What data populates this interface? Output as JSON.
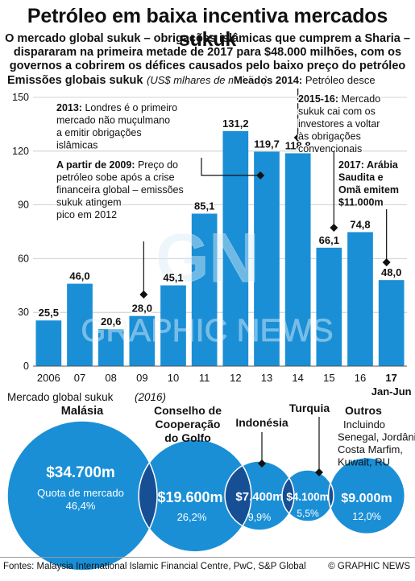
{
  "header": {
    "title": "Petróleo em baixa incentiva mercados sukuk",
    "subtitle_lines": [
      "O mercado global sukuk – obrigações islâmicas que cumprem a Sharia –",
      "dispararam na primeira metade de 2017 para $48.000 milhões, com os",
      "governos a cobrirem os défices causados pelo baixo preço do petróleo"
    ]
  },
  "chart_data": [
    {
      "type": "bar",
      "title": "Emissões globais sukuk",
      "unit_label": "(US$ mlhares de milhões)",
      "categories": [
        "2006",
        "07",
        "08",
        "09",
        "10",
        "11",
        "12",
        "13",
        "14",
        "15",
        "16",
        "17"
      ],
      "category_sublabel": "Jan-Jun",
      "values": [
        25.5,
        46.0,
        20.6,
        28.0,
        45.1,
        85.1,
        131.2,
        119.7,
        118.8,
        66.1,
        74.8,
        48.0
      ],
      "value_labels": [
        "25,5",
        "46,0",
        "20,6",
        "28,0",
        "45,1",
        "85,1",
        "131,2",
        "119,7",
        "118,8",
        "66,1",
        "74,8",
        "48,0"
      ],
      "yticks": [
        "0",
        "30",
        "60",
        "90",
        "120",
        "150"
      ],
      "ylim": [
        0,
        150
      ],
      "grid": true,
      "bar_color": "#1a8fd6",
      "annotations": [
        {
          "title": "2013:",
          "text": "Londres é o primeiro mercado não muçulmano a emitir obrigações islâmicas",
          "lines": [
            "Londres é o primeiro",
            "mercado não muçulmano",
            "a emitir obrigações",
            "islâmicas"
          ]
        },
        {
          "title": "A partir de 2009:",
          "text": "Preço do petróleo sobe após a crise financeira global – emissões sukuk atingem pico em 2012",
          "lines": [
            "Preço do",
            "petróleo sobe após a crise",
            "financeira global – emissões",
            "sukuk atingem",
            "pico em 2012"
          ]
        },
        {
          "title": "Meados 2014:",
          "text": "Petróleo desce",
          "lines": [
            "Petróleo desce"
          ]
        },
        {
          "title": "2015-16:",
          "text": "Mercado sukuk cai com os investores a voltar às obrigações convencionais",
          "lines": [
            "Mercado",
            "sukuk cai com os",
            "investores a voltar",
            "às obrigações",
            "convencionais"
          ]
        },
        {
          "title": "2017: Arábia Saudita e Omã emitem $11.000m",
          "text": "",
          "lines": [
            "2017: Arábia",
            "Saudita e",
            "Omã emitem",
            "$11.000m"
          ]
        }
      ]
    },
    {
      "type": "bubble",
      "title": "Mercado global sukuk",
      "year": "(2016)",
      "bubble_color": "#1a8fd6",
      "overlap_color": "#174f95",
      "items": [
        {
          "name": "Malásia",
          "name_lines": [
            "Malásia"
          ],
          "value_label": "$34.700m",
          "value": 34700,
          "share_caption": "Quota de mercado",
          "share": "46,4%",
          "share_num": 46.4
        },
        {
          "name": "Conselho de Cooperação do Golfo",
          "name_lines": [
            "Conselho de",
            "Cooperação",
            "do Golfo"
          ],
          "value_label": "$19.600m",
          "value": 19600,
          "share": "26,2%",
          "share_num": 26.2
        },
        {
          "name": "Indonésia",
          "name_lines": [
            "Indonésia"
          ],
          "value_label": "$7.400m",
          "value": 7400,
          "share": "9,9%",
          "share_num": 9.9
        },
        {
          "name": "Turquia",
          "name_lines": [
            "Turquia"
          ],
          "value_label": "$4.100m",
          "value": 4100,
          "share": "5,5%",
          "share_num": 5.5
        },
        {
          "name": "Outros",
          "name_lines": [
            "Outros"
          ],
          "detail_lines": [
            "Incluindo",
            "Senegal, Jordânia,",
            "Costa Marfim,",
            "Kuwait, RU"
          ],
          "value_label": "$9.000m",
          "value": 9000,
          "share": "12,0%",
          "share_num": 12.0
        }
      ]
    }
  ],
  "watermark": {
    "logo": "GN",
    "text": "GRAPHIC NEWS"
  },
  "footer": {
    "source": "Fontes: Malaysia International Islamic Financial Centre, PwC, S&P Global",
    "copyright": "© GRAPHIC NEWS"
  }
}
